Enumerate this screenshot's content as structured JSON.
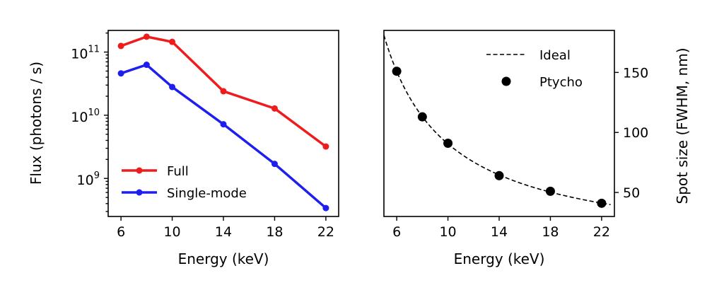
{
  "chart_data": [
    {
      "type": "line",
      "xlabel": "Energy (keV)",
      "ylabel": "Flux (photons / s)",
      "yscale": "log",
      "xlim": [
        5,
        23
      ],
      "ylim": [
        250000000.0,
        220000000000.0
      ],
      "xticks": [
        6,
        10,
        14,
        18,
        22
      ],
      "xtick_labels": [
        "6",
        "10",
        "14",
        "18",
        "22"
      ],
      "yticks": [
        1000000000.0,
        10000000000.0,
        100000000000.0
      ],
      "ytick_labels": [
        {
          "base": "10",
          "exp": "9"
        },
        {
          "base": "10",
          "exp": "10"
        },
        {
          "base": "10",
          "exp": "11"
        }
      ],
      "legend_position": "lower-left",
      "grid": false,
      "series": [
        {
          "name": "Full",
          "color": "#ee1c1c",
          "x": [
            6,
            8,
            10,
            14,
            18,
            22
          ],
          "y": [
            125000000000.0,
            175000000000.0,
            145000000000.0,
            24000000000.0,
            12800000000.0,
            3200000000.0
          ]
        },
        {
          "name": "Single-mode",
          "color": "#1e1eee",
          "x": [
            6,
            8,
            10,
            14,
            18,
            22
          ],
          "y": [
            46000000000.0,
            63000000000.0,
            28000000000.0,
            7200000000.0,
            1700000000.0,
            340000000.0
          ]
        }
      ]
    },
    {
      "type": "scatter",
      "xlabel": "Energy (keV)",
      "ylabel": "Spot size (FWHM, nm)",
      "yaxis_side": "right",
      "xlim": [
        5,
        23
      ],
      "ylim": [
        30,
        185
      ],
      "xticks": [
        6,
        10,
        14,
        18,
        22
      ],
      "xtick_labels": [
        "6",
        "10",
        "14",
        "18",
        "22"
      ],
      "yticks": [
        50,
        100,
        150
      ],
      "ytick_labels": [
        "50",
        "100",
        "150"
      ],
      "legend_position": "top-right",
      "grid": false,
      "ideal_curve": {
        "name": "Ideal",
        "style": "dashed",
        "color": "#000000",
        "form": "k/x",
        "k": 905
      },
      "points": {
        "name": "Ptycho",
        "color": "#000000",
        "x": [
          6,
          8,
          10,
          14,
          18,
          22
        ],
        "y": [
          151,
          113,
          91,
          64,
          51,
          41
        ]
      }
    }
  ]
}
